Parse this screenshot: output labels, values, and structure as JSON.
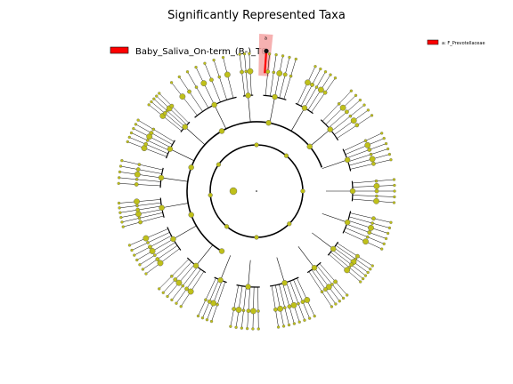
{
  "figure": {
    "title": "Significantly Represented Taxa",
    "background": "#ffffff"
  },
  "legend": {
    "class_label": "Baby_Saliva_On-term_(B-)_T0",
    "class_color": "#ff0000"
  },
  "key": {
    "label": "a: F_Prevotellaceae",
    "color": "#ff0000"
  },
  "highlight": {
    "letter": "a",
    "fill": "#f4a3a3",
    "branch_color": "#ff0000"
  },
  "cladogram": {
    "node_color": "#bfc01a",
    "edge_color": "#000000",
    "tick_marks": 110
  }
}
